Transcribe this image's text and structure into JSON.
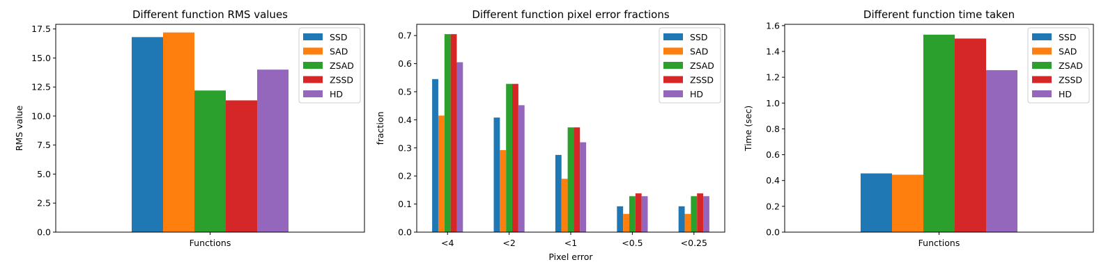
{
  "series_colors": [
    "#1f77b4",
    "#ff7f0e",
    "#2ca02c",
    "#d62728",
    "#9467bd"
  ],
  "chart_data": [
    {
      "type": "bar",
      "title": "Different function RMS values",
      "xlabel": "",
      "ylabel": "RMS value",
      "categories": [
        "Functions"
      ],
      "series": [
        {
          "name": "SSD",
          "values": [
            16.8
          ]
        },
        {
          "name": "SAD",
          "values": [
            17.2
          ]
        },
        {
          "name": "ZSAD",
          "values": [
            12.2
          ]
        },
        {
          "name": "ZSSD",
          "values": [
            11.35
          ]
        },
        {
          "name": "HD",
          "values": [
            14.0
          ]
        }
      ],
      "ylim": [
        0,
        17.9
      ],
      "yticks": [
        0.0,
        2.5,
        5.0,
        7.5,
        10.0,
        12.5,
        15.0,
        17.5
      ],
      "ytick_labels": [
        "0.0",
        "2.5",
        "5.0",
        "7.5",
        "10.0",
        "12.5",
        "15.0",
        "17.5"
      ],
      "legend": "top-right",
      "grid": false
    },
    {
      "type": "bar",
      "title": "Different function pixel error fractions",
      "xlabel": "Pixel error",
      "ylabel": "fraction",
      "categories": [
        "<4",
        "<2",
        "<1",
        "<0.5",
        "<0.25"
      ],
      "series": [
        {
          "name": "SSD",
          "values": [
            0.545,
            0.408,
            0.275,
            0.092,
            0.092
          ]
        },
        {
          "name": "SAD",
          "values": [
            0.415,
            0.292,
            0.19,
            0.065,
            0.065
          ]
        },
        {
          "name": "ZSAD",
          "values": [
            0.705,
            0.528,
            0.373,
            0.128,
            0.128
          ]
        },
        {
          "name": "ZSSD",
          "values": [
            0.705,
            0.528,
            0.373,
            0.138,
            0.138
          ]
        },
        {
          "name": "HD",
          "values": [
            0.605,
            0.452,
            0.32,
            0.128,
            0.128
          ]
        }
      ],
      "ylim": [
        0,
        0.74
      ],
      "yticks": [
        0.0,
        0.1,
        0.2,
        0.3,
        0.4,
        0.5,
        0.6,
        0.7
      ],
      "ytick_labels": [
        "0.0",
        "0.1",
        "0.2",
        "0.3",
        "0.4",
        "0.5",
        "0.6",
        "0.7"
      ],
      "legend": "top-right",
      "grid": false
    },
    {
      "type": "bar",
      "title": "Different function time taken",
      "xlabel": "",
      "ylabel": "Time (sec)",
      "categories": [
        "Functions"
      ],
      "series": [
        {
          "name": "SSD",
          "values": [
            0.455
          ]
        },
        {
          "name": "SAD",
          "values": [
            0.445
          ]
        },
        {
          "name": "ZSAD",
          "values": [
            1.53
          ]
        },
        {
          "name": "ZSSD",
          "values": [
            1.5
          ]
        },
        {
          "name": "HD",
          "values": [
            1.255
          ]
        }
      ],
      "ylim": [
        0,
        1.61
      ],
      "yticks": [
        0.0,
        0.2,
        0.4,
        0.6,
        0.8,
        1.0,
        1.2,
        1.4,
        1.6
      ],
      "ytick_labels": [
        "0.0",
        "0.2",
        "0.4",
        "0.6",
        "0.8",
        "1.0",
        "1.2",
        "1.4",
        "1.6"
      ],
      "legend": "top-right",
      "grid": false
    }
  ]
}
